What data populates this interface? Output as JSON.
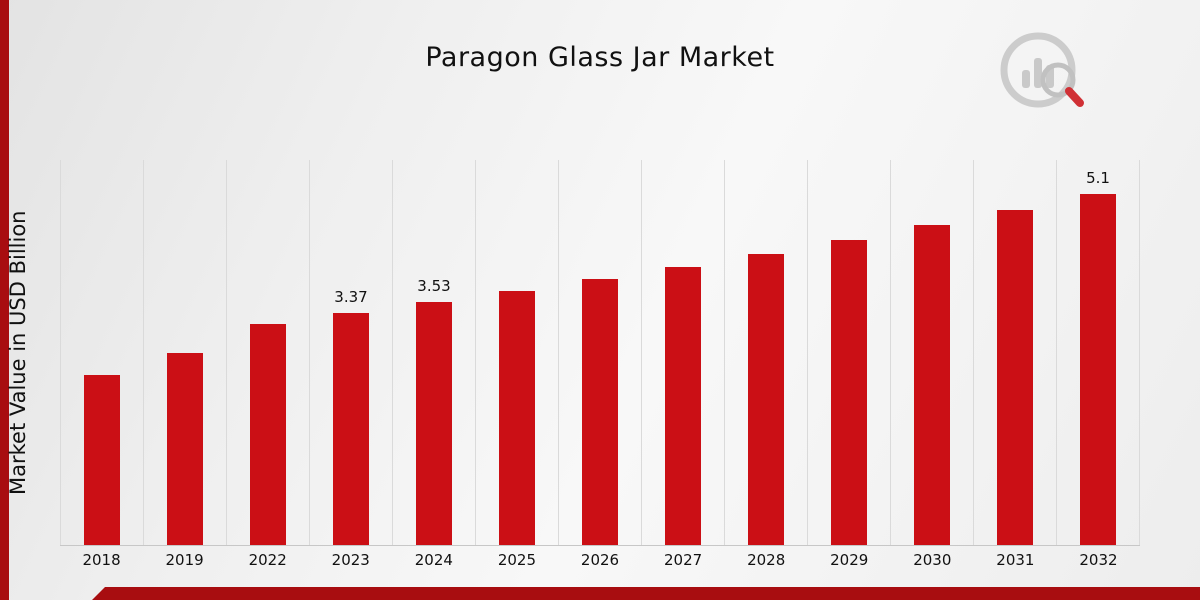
{
  "header": {
    "title": "Paragon Glass Jar Market"
  },
  "axes": {
    "y_label": "Market Value in USD Billion"
  },
  "chart_data": {
    "type": "bar",
    "title": "Paragon Glass Jar Market",
    "xlabel": "",
    "ylabel": "Market Value in USD Billion",
    "categories": [
      "2018",
      "2019",
      "2022",
      "2023",
      "2024",
      "2025",
      "2026",
      "2027",
      "2028",
      "2029",
      "2030",
      "2031",
      "2032"
    ],
    "values": [
      2.47,
      2.8,
      3.22,
      3.37,
      3.53,
      3.7,
      3.87,
      4.05,
      4.24,
      4.44,
      4.65,
      4.87,
      5.1
    ],
    "point_labels": [
      "",
      "",
      "",
      "3.37",
      "3.53",
      "",
      "",
      "",
      "",
      "",
      "",
      "",
      "5.1"
    ],
    "ylim": [
      0,
      5.6
    ],
    "bar_color": "#cb0f15",
    "accent_color": "#a80d10",
    "grid": "vertical",
    "legend": "none"
  }
}
